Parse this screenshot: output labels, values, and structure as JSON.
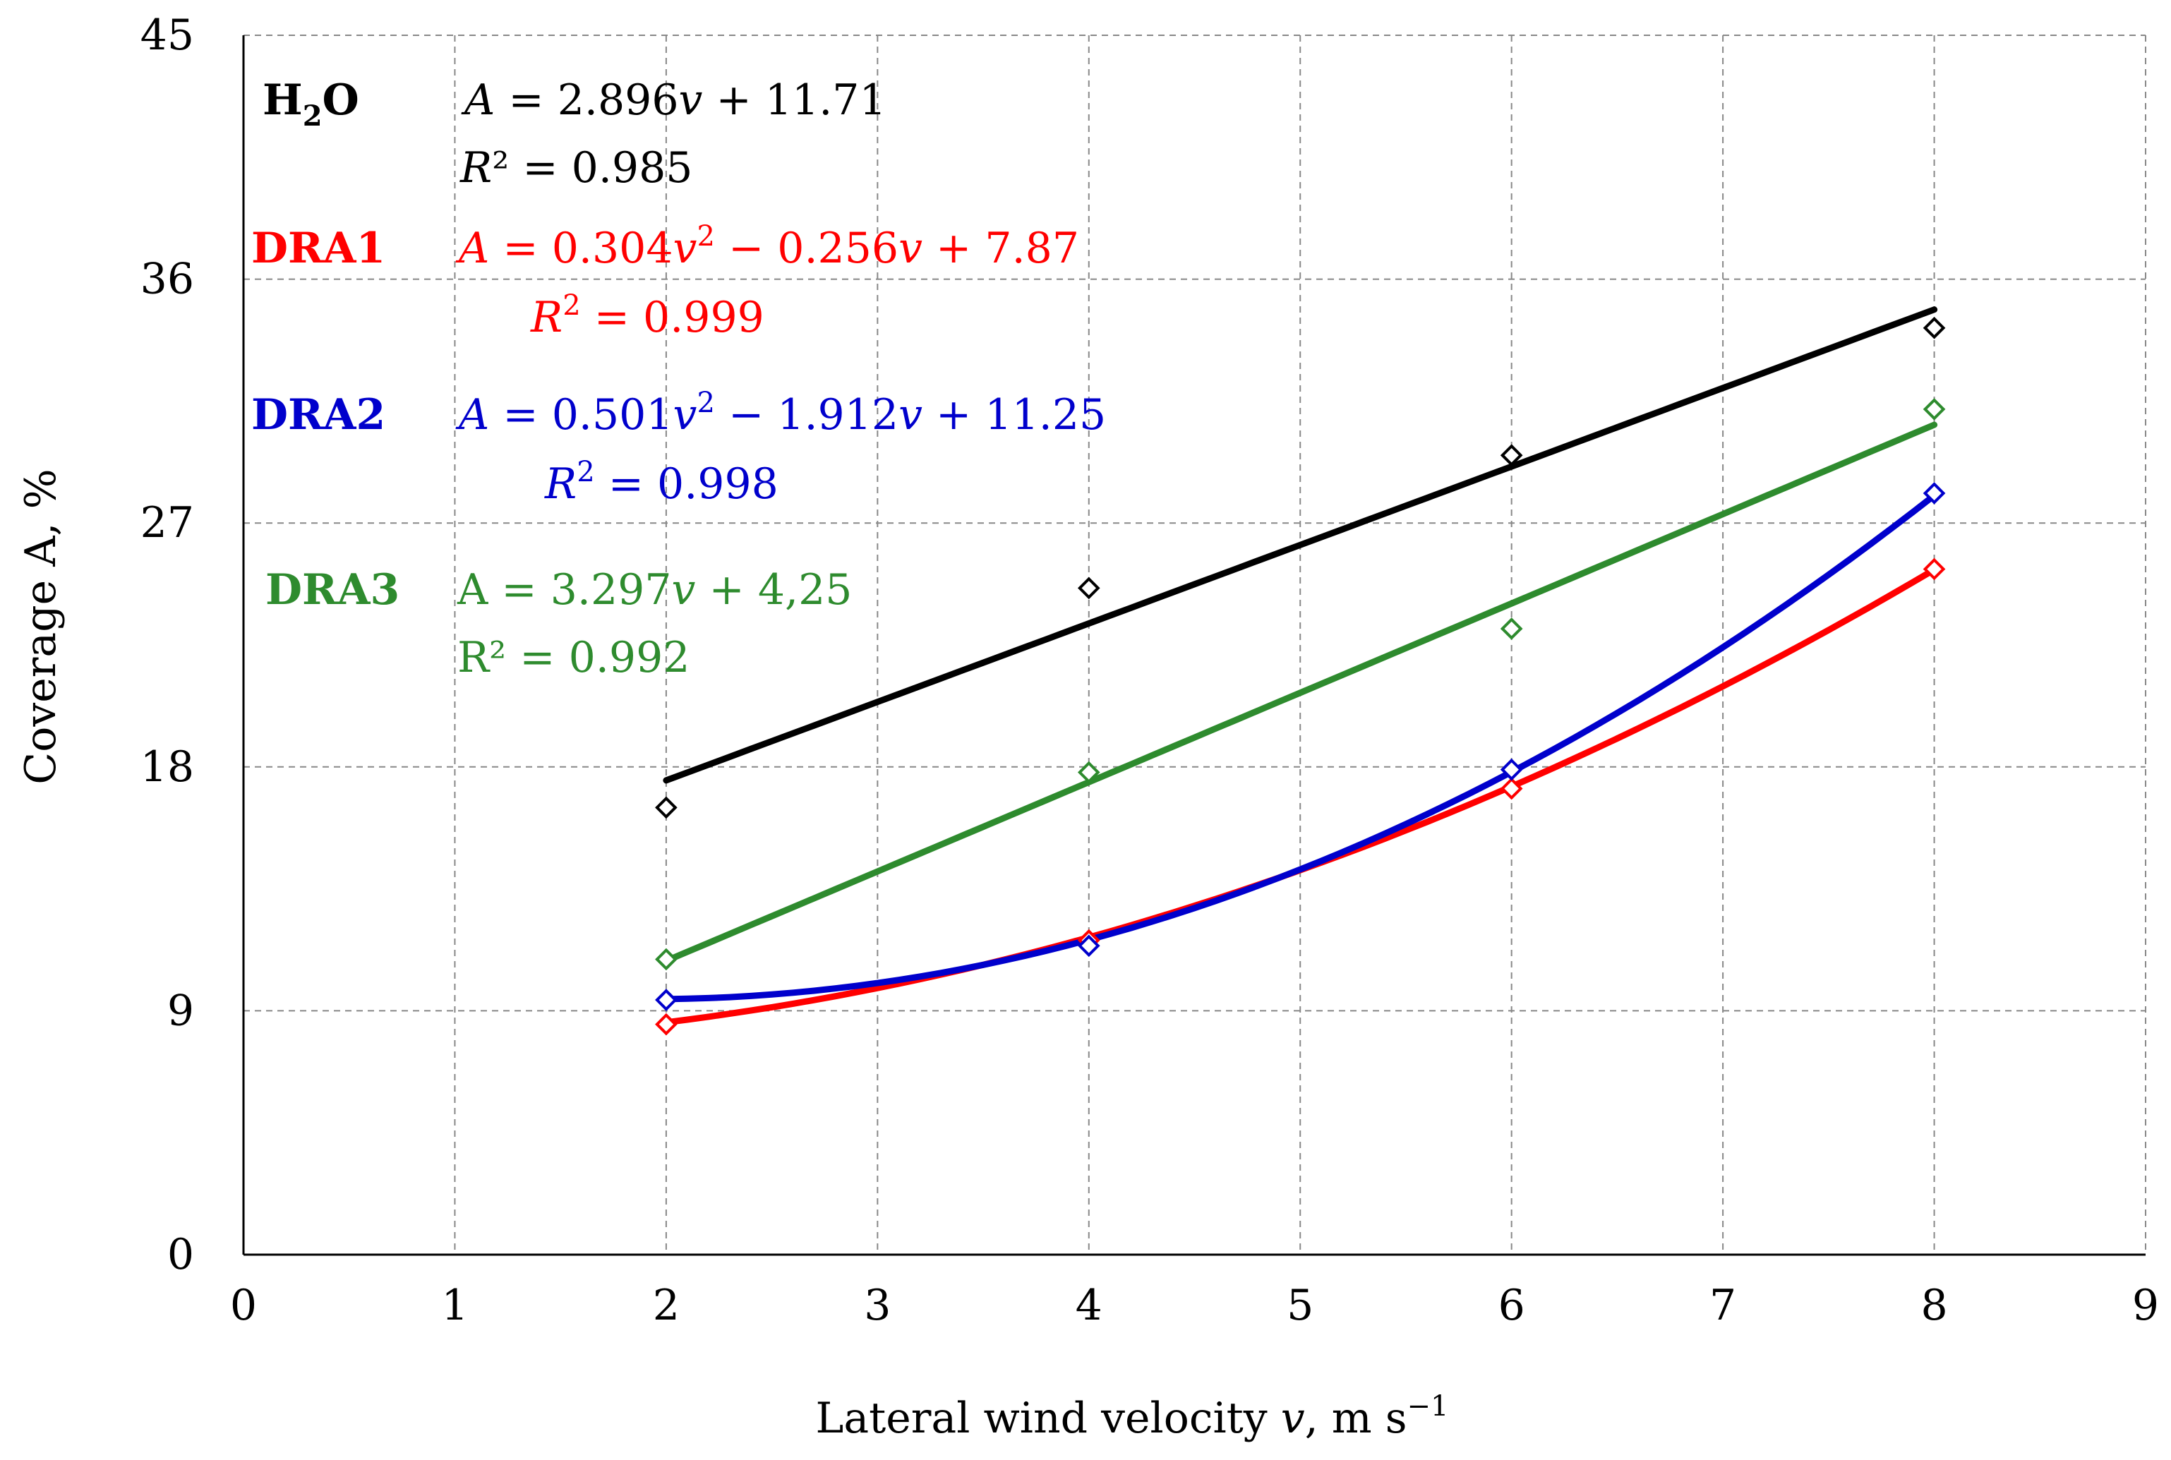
{
  "chart_data": {
    "type": "scatter",
    "title": "",
    "xlabel": "Lateral wind velocity",
    "xlabel_var": "v",
    "xlabel_unit": ", m s",
    "xlabel_exp": "−1",
    "ylabel": "Coverage A, %",
    "xlim": [
      0,
      9
    ],
    "ylim": [
      0,
      45
    ],
    "xticks": [
      "0",
      "1",
      "2",
      "3",
      "4",
      "5",
      "6",
      "7",
      "8",
      "9"
    ],
    "yticks": [
      "0",
      "9",
      "18",
      "27",
      "36",
      "45"
    ],
    "grid": true,
    "series": [
      {
        "id": "h2o",
        "name": "H2O",
        "color": "#000000",
        "x": [
          2,
          4,
          6,
          8
        ],
        "y": [
          16.5,
          24.6,
          29.5,
          34.2
        ],
        "fit": {
          "kind": "linear",
          "a": 2.896,
          "b": 11.71
        }
      },
      {
        "id": "dra1",
        "name": "DRA1",
        "color": "#ff0000",
        "x": [
          2,
          4,
          6,
          8
        ],
        "y": [
          8.5,
          11.6,
          17.2,
          25.3
        ],
        "fit": {
          "kind": "quadratic",
          "a": 0.304,
          "b": -0.256,
          "c": 7.87
        }
      },
      {
        "id": "dra2",
        "name": "DRA2",
        "color": "#0000cc",
        "x": [
          2,
          4,
          6,
          8
        ],
        "y": [
          9.4,
          11.4,
          17.9,
          28.1
        ],
        "fit": {
          "kind": "quadratic",
          "a": 0.501,
          "b": -1.912,
          "c": 11.25
        }
      },
      {
        "id": "dra3",
        "name": "DRA3",
        "color": "#2e8b2e",
        "x": [
          2,
          4,
          6,
          8
        ],
        "y": [
          10.9,
          17.8,
          23.1,
          31.2
        ],
        "fit": {
          "kind": "linear",
          "a": 3.297,
          "b": 4.25
        }
      }
    ],
    "annotations": {
      "h2o": {
        "label_main": "H",
        "label_sub": "2",
        "label_tail": "O",
        "eq_head": "A",
        "eq_rest": " = 2.896",
        "eq_v": "v",
        "eq_tail": " + 11.71",
        "r2_head": "R",
        "r2_rest": "² = 0.985"
      },
      "dra1": {
        "label": "DRA1",
        "eq_head": "A",
        "eq_rest": " = 0.304",
        "eq_v1": "v",
        "eq_sup": "2",
        "eq_mid": " − 0.256",
        "eq_v2": "v",
        "eq_tail": " + 7.87",
        "r2_head": "R",
        "r2_sup": "2",
        "r2_rest": " = 0.999"
      },
      "dra2": {
        "label": "DRA2",
        "eq_head": "A",
        "eq_rest": " = 0.501",
        "eq_v1": "v",
        "eq_sup": "2",
        "eq_mid": " − 1.912",
        "eq_v2": "v",
        "eq_tail": " + 11.25",
        "r2_head": "R",
        "r2_sup": "2",
        "r2_rest": " = 0.998"
      },
      "dra3": {
        "label": "DRA3",
        "eq_head": "A = 3.297",
        "eq_v": "v",
        "eq_tail": " + 4,25",
        "r2": "R² = 0.992"
      }
    }
  }
}
